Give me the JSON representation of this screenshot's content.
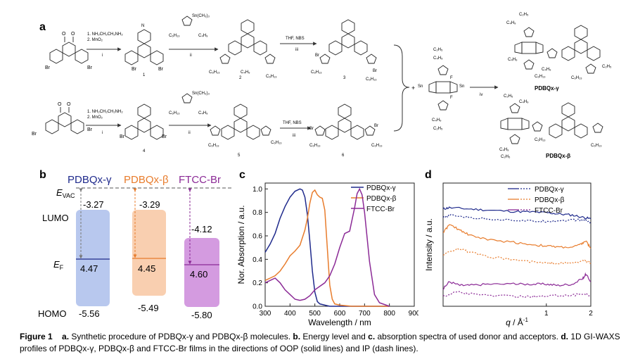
{
  "panel_labels": {
    "a": "a",
    "b": "b",
    "c": "c",
    "d": "d"
  },
  "scheme": {
    "row1": {
      "step1_line1": "1. NH₂CH₂CH₂NH₂",
      "step1_line2": "2. MnO₂",
      "step1_numeral": "i",
      "step2_numeral": "ii",
      "step3_reagent": "THF, NBS",
      "step3_numeral": "iii",
      "compounds": [
        "1",
        "2",
        "3"
      ]
    },
    "row2": {
      "step1_line1": "1. NH₂CH₂CH₂NH₂",
      "step1_line2": "2. MnO₂",
      "step1_numeral": "i",
      "step2_numeral": "ii",
      "step3_reagent": "THF, NBS",
      "step3_numeral": "iii",
      "compounds": [
        "4",
        "5",
        "6"
      ]
    },
    "stannyl_label": "Sn(CH₃)₃",
    "side_chain_a": "C₆H₁₃",
    "side_chain_b": "C₄H₉",
    "side_chain_c": "C₂H₅",
    "br": "Br",
    "f": "F",
    "sn": "Sn",
    "s": "S",
    "n": "N",
    "o": "O",
    "step4_numeral": "iv",
    "product1": "PDBQx-γ",
    "product2": "PDBQx-β"
  },
  "energy_levels": {
    "evac_label": "E",
    "evac_sub": "VAC",
    "ef_label": "E",
    "ef_sub": "F",
    "lumo_label": "LUMO",
    "homo_label": "HOMO",
    "materials": [
      {
        "name": "PDBQx-γ",
        "lumo": "-3.27",
        "ef": "4.47",
        "homo": "-5.56",
        "color": "#1f2a8c",
        "fill": "#b8c8ee"
      },
      {
        "name": "PDBQx-β",
        "lumo": "-3.29",
        "ef": "4.45",
        "homo": "-5.49",
        "color": "#e87c2c",
        "fill": "#f9cfb0"
      },
      {
        "name": "FTCC-Br",
        "lumo": "-4.12",
        "ef": "4.60",
        "homo": "-5.80",
        "color": "#8b2a96",
        "fill": "#d49be0"
      }
    ]
  },
  "chart_data": [
    {
      "type": "line",
      "title": "",
      "xlabel": "Wavelength / nm",
      "ylabel": "Nor. Absorption / a.u.",
      "xlim": [
        300,
        900
      ],
      "ylim": [
        0,
        1.05
      ],
      "xticks": [
        "300",
        "400",
        "500",
        "600",
        "700",
        "800",
        "900"
      ],
      "yticks": [
        "0.0",
        "0.2",
        "0.4",
        "0.6",
        "0.8",
        "1.0"
      ],
      "legend": "top-right",
      "series": [
        {
          "name": "PDBQx-γ",
          "color": "#1f2a8c",
          "x": [
            300,
            320,
            340,
            360,
            380,
            400,
            420,
            440,
            450,
            460,
            470,
            480,
            490,
            500,
            510,
            520,
            540,
            560,
            600,
            650,
            700,
            750,
            800
          ],
          "y": [
            0.46,
            0.53,
            0.62,
            0.75,
            0.85,
            0.93,
            0.98,
            1.0,
            0.99,
            0.93,
            0.78,
            0.55,
            0.3,
            0.12,
            0.04,
            0.02,
            0.01,
            0.0,
            0.0,
            0.0,
            0.0,
            0.0,
            0.0
          ]
        },
        {
          "name": "PDBQx-β",
          "color": "#e87c2c",
          "x": [
            300,
            320,
            340,
            360,
            380,
            400,
            420,
            440,
            460,
            470,
            480,
            490,
            500,
            510,
            520,
            530,
            540,
            550,
            560,
            570,
            580,
            600,
            650,
            700,
            800
          ],
          "y": [
            0.22,
            0.24,
            0.26,
            0.3,
            0.36,
            0.43,
            0.47,
            0.52,
            0.65,
            0.75,
            0.88,
            0.97,
            0.99,
            0.95,
            0.93,
            0.92,
            0.82,
            0.5,
            0.18,
            0.06,
            0.02,
            0.01,
            0.0,
            0.0,
            0.0
          ]
        },
        {
          "name": "FTCC-Br",
          "color": "#8b2a96",
          "x": [
            300,
            320,
            340,
            360,
            380,
            400,
            420,
            440,
            460,
            480,
            500,
            520,
            540,
            560,
            580,
            600,
            620,
            640,
            660,
            670,
            680,
            690,
            700,
            720,
            740,
            760,
            800
          ],
          "y": [
            0.2,
            0.22,
            0.24,
            0.2,
            0.14,
            0.1,
            0.06,
            0.05,
            0.06,
            0.09,
            0.14,
            0.17,
            0.2,
            0.26,
            0.36,
            0.5,
            0.62,
            0.64,
            0.84,
            0.96,
            1.0,
            0.95,
            0.8,
            0.38,
            0.1,
            0.03,
            0.0
          ]
        }
      ]
    },
    {
      "type": "line",
      "title": "",
      "xlabel_main": "q",
      "xlabel_unit": " / Å",
      "xlabel_sup": "-1",
      "ylabel": "Intensity / a.u.",
      "xscale": "log",
      "xlim": [
        0.2,
        2
      ],
      "xticks": [
        "1",
        "2"
      ],
      "legend": "top-right",
      "series": [
        {
          "name": "PDBQx-γ OOP",
          "color": "#1f2a8c",
          "dash": false,
          "x": [
            0.2,
            0.22,
            0.3,
            0.4,
            0.6,
            0.8,
            1.0,
            1.2,
            1.5,
            1.8,
            2.0
          ],
          "y": [
            0.79,
            0.8,
            0.79,
            0.78,
            0.77,
            0.765,
            0.76,
            0.75,
            0.74,
            0.72,
            0.71
          ]
        },
        {
          "name": "PDBQx-γ IP",
          "color": "#1f2a8c",
          "dash": true,
          "x": [
            0.2,
            0.23,
            0.3,
            0.4,
            0.6,
            0.8,
            1.0,
            1.2,
            1.5,
            1.8,
            2.0
          ],
          "y": [
            0.72,
            0.74,
            0.72,
            0.71,
            0.7,
            0.69,
            0.69,
            0.695,
            0.7,
            0.7,
            0.68
          ]
        },
        {
          "name": "PDBQx-β OOP",
          "color": "#e87c2c",
          "dash": false,
          "x": [
            0.2,
            0.22,
            0.26,
            0.3,
            0.4,
            0.6,
            0.8,
            1.0,
            1.2,
            1.5,
            1.7,
            1.85,
            2.0
          ],
          "y": [
            0.6,
            0.66,
            0.62,
            0.58,
            0.54,
            0.52,
            0.5,
            0.49,
            0.48,
            0.48,
            0.5,
            0.53,
            0.47
          ]
        },
        {
          "name": "PDBQx-β IP",
          "color": "#e87c2c",
          "dash": true,
          "x": [
            0.2,
            0.25,
            0.3,
            0.4,
            0.6,
            0.8,
            1.0,
            1.2,
            1.5,
            1.8,
            2.0
          ],
          "y": [
            0.42,
            0.47,
            0.44,
            0.4,
            0.38,
            0.36,
            0.35,
            0.35,
            0.35,
            0.37,
            0.35
          ]
        },
        {
          "name": "FTCC-Br OOP",
          "color": "#8b2a96",
          "dash": false,
          "x": [
            0.2,
            0.22,
            0.26,
            0.3,
            0.4,
            0.6,
            0.8,
            1.0,
            1.2,
            1.5,
            1.75,
            1.85,
            2.0
          ],
          "y": [
            0.14,
            0.2,
            0.17,
            0.17,
            0.18,
            0.18,
            0.18,
            0.18,
            0.17,
            0.18,
            0.22,
            0.26,
            0.2
          ]
        },
        {
          "name": "FTCC-Br IP",
          "color": "#8b2a96",
          "dash": true,
          "x": [
            0.2,
            0.25,
            0.3,
            0.4,
            0.6,
            0.8,
            1.0,
            1.2,
            1.5,
            1.8,
            2.0
          ],
          "y": [
            0.08,
            0.12,
            0.1,
            0.09,
            0.08,
            0.08,
            0.08,
            0.09,
            0.09,
            0.1,
            0.09
          ]
        }
      ],
      "legend_entries": [
        {
          "name": "PDBQx-γ",
          "color": "#1f2a8c"
        },
        {
          "name": "PDBQx-β",
          "color": "#e87c2c"
        },
        {
          "name": "FTCC-Br",
          "color": "#8b2a96"
        }
      ]
    }
  ],
  "caption": {
    "label": "Figure 1",
    "a_label": "a.",
    "a_text": " Synthetic procedure of PDBQx-γ and PDBQx-β molecules. ",
    "b_label": "b.",
    "b_text": " Energy level and ",
    "c_label": "c.",
    "c_text": " absorption spectra of used donor and acceptors. ",
    "d_label": "d.",
    "d_text": " 1D GI-WAXS profiles of PDBQx-γ, PDBQx-β and FTCC-Br films in the directions of OOP (solid lines) and IP (dash lines)."
  }
}
